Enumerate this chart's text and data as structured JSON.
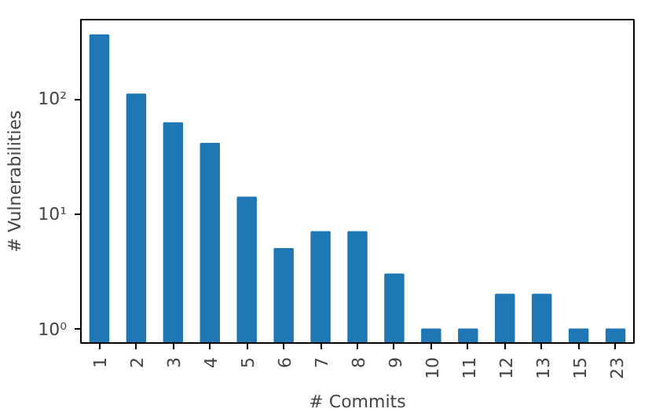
{
  "chart_data": {
    "type": "bar",
    "xlabel": "# Commits",
    "ylabel": "# Vulnerabilities",
    "categories": [
      "1",
      "2",
      "3",
      "4",
      "5",
      "6",
      "7",
      "8",
      "9",
      "10",
      "11",
      "12",
      "13",
      "15",
      "23"
    ],
    "values": [
      360,
      110,
      62,
      41,
      14,
      5,
      7,
      7,
      3,
      1,
      1,
      2,
      2,
      1,
      1
    ],
    "color": "#1f77b4",
    "log": "y",
    "grid": false,
    "ylim": [
      0.76,
      490
    ],
    "yticks": [
      {
        "value": 1,
        "label": "10⁰"
      },
      {
        "value": 10,
        "label": "10¹"
      },
      {
        "value": 100,
        "label": "10²"
      }
    ]
  }
}
